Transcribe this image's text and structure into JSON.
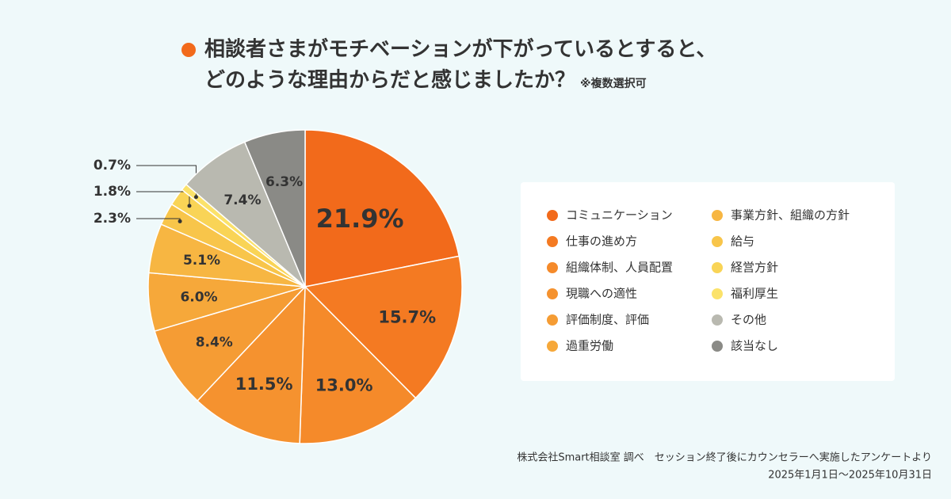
{
  "chart_data": {
    "type": "pie",
    "title_lines": [
      "相談者さまがモチベーションが下がっているとすると、",
      "どのような理由からだと感じましたか？"
    ],
    "note": "※複数選択可",
    "categories": [
      "コミュニケーション",
      "仕事の進め方",
      "組織体制、人員配置",
      "現職への適性",
      "評価制度、評価",
      "過重労働",
      "事業方針、組織の方針",
      "給与",
      "経営方針",
      "福利厚生",
      "その他",
      "該当なし"
    ],
    "values": [
      21.9,
      15.7,
      13.0,
      11.5,
      8.4,
      6.0,
      5.1,
      2.3,
      1.8,
      0.7,
      7.4,
      6.3
    ],
    "value_labels": [
      "21.9%",
      "15.7%",
      "13.0%",
      "11.5%",
      "8.4%",
      "6.0%",
      "5.1%",
      "2.3%",
      "1.8%",
      "0.7%",
      "7.4%",
      "6.3%"
    ],
    "colors": [
      "#f26a1b",
      "#f47a22",
      "#f58a2a",
      "#f5922f",
      "#f59c34",
      "#f6a83a",
      "#f7b642",
      "#f8c54a",
      "#f9d456",
      "#fbe26a",
      "#b9b9b0",
      "#8a8a86"
    ],
    "legend": "right",
    "source": [
      "株式会社Smart相談室 調べ　セッション終了後にカウンセラーへ実施したアンケートより",
      "2025年1月1日〜2025年10月31日"
    ]
  }
}
